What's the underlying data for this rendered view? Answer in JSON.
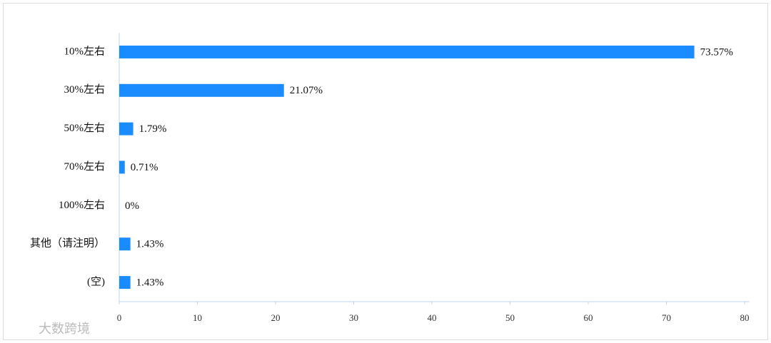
{
  "chart_data": {
    "type": "bar",
    "orientation": "horizontal",
    "categories": [
      "10%左右",
      "30%左右",
      "50%左右",
      "70%左右",
      "100%左右",
      "其他（请注明）",
      "(空)"
    ],
    "values": [
      73.57,
      21.07,
      1.79,
      0.71,
      0,
      1.43,
      1.43
    ],
    "value_labels": [
      "73.57%",
      "21.07%",
      "1.79%",
      "0.71%",
      "0%",
      "1.43%",
      "1.43%"
    ],
    "color": "#1a8cff",
    "xlim": [
      0,
      80
    ],
    "xticks": [
      0,
      10,
      20,
      30,
      40,
      50,
      60,
      70,
      80
    ],
    "grid": false
  },
  "watermark": "大数跨境"
}
